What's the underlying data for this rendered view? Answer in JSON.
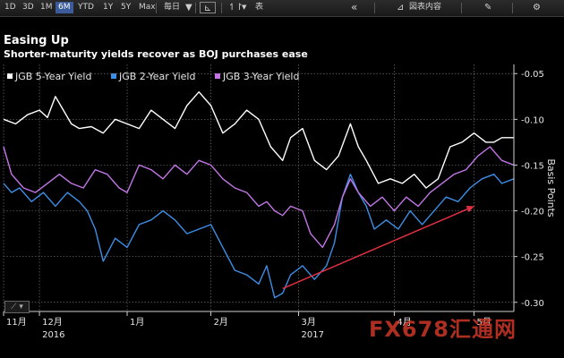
{
  "toolbar": {
    "periods": [
      "1D",
      "3D",
      "1M",
      "6M",
      "YTD",
      "1Y",
      "5Y",
      "Max"
    ],
    "active_period": "6M",
    "frequency": "毎日",
    "table_label": "表",
    "news_label": "図表内容",
    "icons": [
      "chevron-down-icon",
      "line-chart-icon",
      "adjust-icon",
      "collapse-icon",
      "graph-icon",
      "edit-icon",
      "gear-icon"
    ]
  },
  "header": {
    "title": "Easing Up",
    "subtitle": "Shorter-maturity yields recover as BOJ purchases ease"
  },
  "watermark": {
    "text": "FX678汇通网"
  },
  "colors": {
    "five_year": "#ffffff",
    "two_year": "#3d8fe6",
    "three_year": "#c476e8",
    "arrow": "#e03040",
    "background": "#000000",
    "grid": "#707070"
  },
  "chart_data": {
    "type": "line",
    "y_axis_title": "Basis Points",
    "ylim": [
      -0.31,
      -0.04
    ],
    "y_ticks": [
      -0.05,
      -0.1,
      -0.15,
      -0.2,
      -0.25,
      -0.3
    ],
    "y_tick_labels": [
      "-0.05",
      "-0.10",
      "-0.15",
      "-0.20",
      "-0.25",
      "-0.30"
    ],
    "grid": true,
    "legend_position": "top-left",
    "x_ticks": [
      {
        "x": 0,
        "label": "11月"
      },
      {
        "x": 9,
        "label": "12月"
      },
      {
        "x": 31,
        "label": "1月"
      },
      {
        "x": 52,
        "label": "2月"
      },
      {
        "x": 74,
        "label": "3月"
      },
      {
        "x": 98,
        "label": "4月"
      },
      {
        "x": 118,
        "label": "5月"
      }
    ],
    "year_labels": [
      {
        "x": 9,
        "label": "2016"
      },
      {
        "x": 74,
        "label": "2017"
      }
    ],
    "x_range": [
      0,
      128
    ],
    "series": [
      {
        "name": "JGB 5-Year Yield",
        "color": "#ffffff",
        "values": [
          [
            0,
            -0.1
          ],
          [
            3,
            -0.105
          ],
          [
            6,
            -0.095
          ],
          [
            9,
            -0.09
          ],
          [
            11,
            -0.098
          ],
          [
            13,
            -0.075
          ],
          [
            15,
            -0.09
          ],
          [
            17,
            -0.105
          ],
          [
            19,
            -0.11
          ],
          [
            22,
            -0.108
          ],
          [
            25,
            -0.115
          ],
          [
            28,
            -0.1
          ],
          [
            31,
            -0.105
          ],
          [
            34,
            -0.11
          ],
          [
            37,
            -0.09
          ],
          [
            40,
            -0.1
          ],
          [
            43,
            -0.11
          ],
          [
            46,
            -0.085
          ],
          [
            49,
            -0.07
          ],
          [
            52,
            -0.085
          ],
          [
            55,
            -0.115
          ],
          [
            58,
            -0.105
          ],
          [
            61,
            -0.09
          ],
          [
            64,
            -0.1
          ],
          [
            67,
            -0.13
          ],
          [
            70,
            -0.145
          ],
          [
            72,
            -0.12
          ],
          [
            75,
            -0.11
          ],
          [
            78,
            -0.145
          ],
          [
            81,
            -0.155
          ],
          [
            84,
            -0.14
          ],
          [
            87,
            -0.105
          ],
          [
            89,
            -0.13
          ],
          [
            91,
            -0.145
          ],
          [
            94,
            -0.17
          ],
          [
            97,
            -0.165
          ],
          [
            100,
            -0.17
          ],
          [
            103,
            -0.16
          ],
          [
            106,
            -0.175
          ],
          [
            109,
            -0.165
          ],
          [
            112,
            -0.13
          ],
          [
            115,
            -0.125
          ],
          [
            118,
            -0.115
          ],
          [
            121,
            -0.125
          ],
          [
            123,
            -0.125
          ],
          [
            125,
            -0.12
          ],
          [
            128,
            -0.12
          ]
        ]
      },
      {
        "name": "JGB 2-Year Yield",
        "color": "#3d8fe6",
        "values": [
          [
            0,
            -0.17
          ],
          [
            2,
            -0.18
          ],
          [
            4,
            -0.175
          ],
          [
            7,
            -0.19
          ],
          [
            10,
            -0.18
          ],
          [
            13,
            -0.195
          ],
          [
            16,
            -0.18
          ],
          [
            19,
            -0.19
          ],
          [
            21,
            -0.2
          ],
          [
            23,
            -0.22
          ],
          [
            25,
            -0.255
          ],
          [
            28,
            -0.23
          ],
          [
            31,
            -0.24
          ],
          [
            34,
            -0.215
          ],
          [
            37,
            -0.21
          ],
          [
            40,
            -0.2
          ],
          [
            43,
            -0.21
          ],
          [
            46,
            -0.225
          ],
          [
            49,
            -0.22
          ],
          [
            52,
            -0.215
          ],
          [
            55,
            -0.24
          ],
          [
            58,
            -0.265
          ],
          [
            61,
            -0.27
          ],
          [
            64,
            -0.28
          ],
          [
            66,
            -0.26
          ],
          [
            68,
            -0.295
          ],
          [
            70,
            -0.29
          ],
          [
            72,
            -0.27
          ],
          [
            75,
            -0.26
          ],
          [
            78,
            -0.275
          ],
          [
            81,
            -0.26
          ],
          [
            83,
            -0.235
          ],
          [
            85,
            -0.185
          ],
          [
            87,
            -0.16
          ],
          [
            89,
            -0.18
          ],
          [
            91,
            -0.195
          ],
          [
            93,
            -0.22
          ],
          [
            96,
            -0.21
          ],
          [
            99,
            -0.22
          ],
          [
            102,
            -0.2
          ],
          [
            105,
            -0.215
          ],
          [
            108,
            -0.2
          ],
          [
            111,
            -0.185
          ],
          [
            114,
            -0.19
          ],
          [
            117,
            -0.175
          ],
          [
            120,
            -0.165
          ],
          [
            123,
            -0.16
          ],
          [
            125,
            -0.17
          ],
          [
            128,
            -0.165
          ]
        ]
      },
      {
        "name": "JGB 3-Year Yield",
        "color": "#c476e8",
        "values": [
          [
            0,
            -0.13
          ],
          [
            2,
            -0.16
          ],
          [
            5,
            -0.175
          ],
          [
            8,
            -0.18
          ],
          [
            11,
            -0.17
          ],
          [
            14,
            -0.16
          ],
          [
            17,
            -0.17
          ],
          [
            20,
            -0.175
          ],
          [
            23,
            -0.155
          ],
          [
            26,
            -0.16
          ],
          [
            29,
            -0.175
          ],
          [
            31,
            -0.18
          ],
          [
            34,
            -0.15
          ],
          [
            37,
            -0.155
          ],
          [
            40,
            -0.165
          ],
          [
            43,
            -0.15
          ],
          [
            46,
            -0.16
          ],
          [
            49,
            -0.145
          ],
          [
            52,
            -0.15
          ],
          [
            55,
            -0.165
          ],
          [
            58,
            -0.175
          ],
          [
            61,
            -0.18
          ],
          [
            64,
            -0.195
          ],
          [
            66,
            -0.19
          ],
          [
            68,
            -0.2
          ],
          [
            70,
            -0.205
          ],
          [
            72,
            -0.195
          ],
          [
            75,
            -0.2
          ],
          [
            77,
            -0.225
          ],
          [
            80,
            -0.24
          ],
          [
            83,
            -0.215
          ],
          [
            85,
            -0.185
          ],
          [
            87,
            -0.165
          ],
          [
            89,
            -0.18
          ],
          [
            92,
            -0.195
          ],
          [
            95,
            -0.185
          ],
          [
            98,
            -0.2
          ],
          [
            101,
            -0.185
          ],
          [
            104,
            -0.195
          ],
          [
            107,
            -0.18
          ],
          [
            110,
            -0.17
          ],
          [
            113,
            -0.16
          ],
          [
            116,
            -0.155
          ],
          [
            119,
            -0.14
          ],
          [
            122,
            -0.13
          ],
          [
            125,
            -0.145
          ],
          [
            128,
            -0.15
          ]
        ]
      }
    ],
    "annotation": {
      "type": "arrow",
      "from": [
        70,
        -0.285
      ],
      "to": [
        118,
        -0.195
      ],
      "color": "#e03040"
    }
  }
}
